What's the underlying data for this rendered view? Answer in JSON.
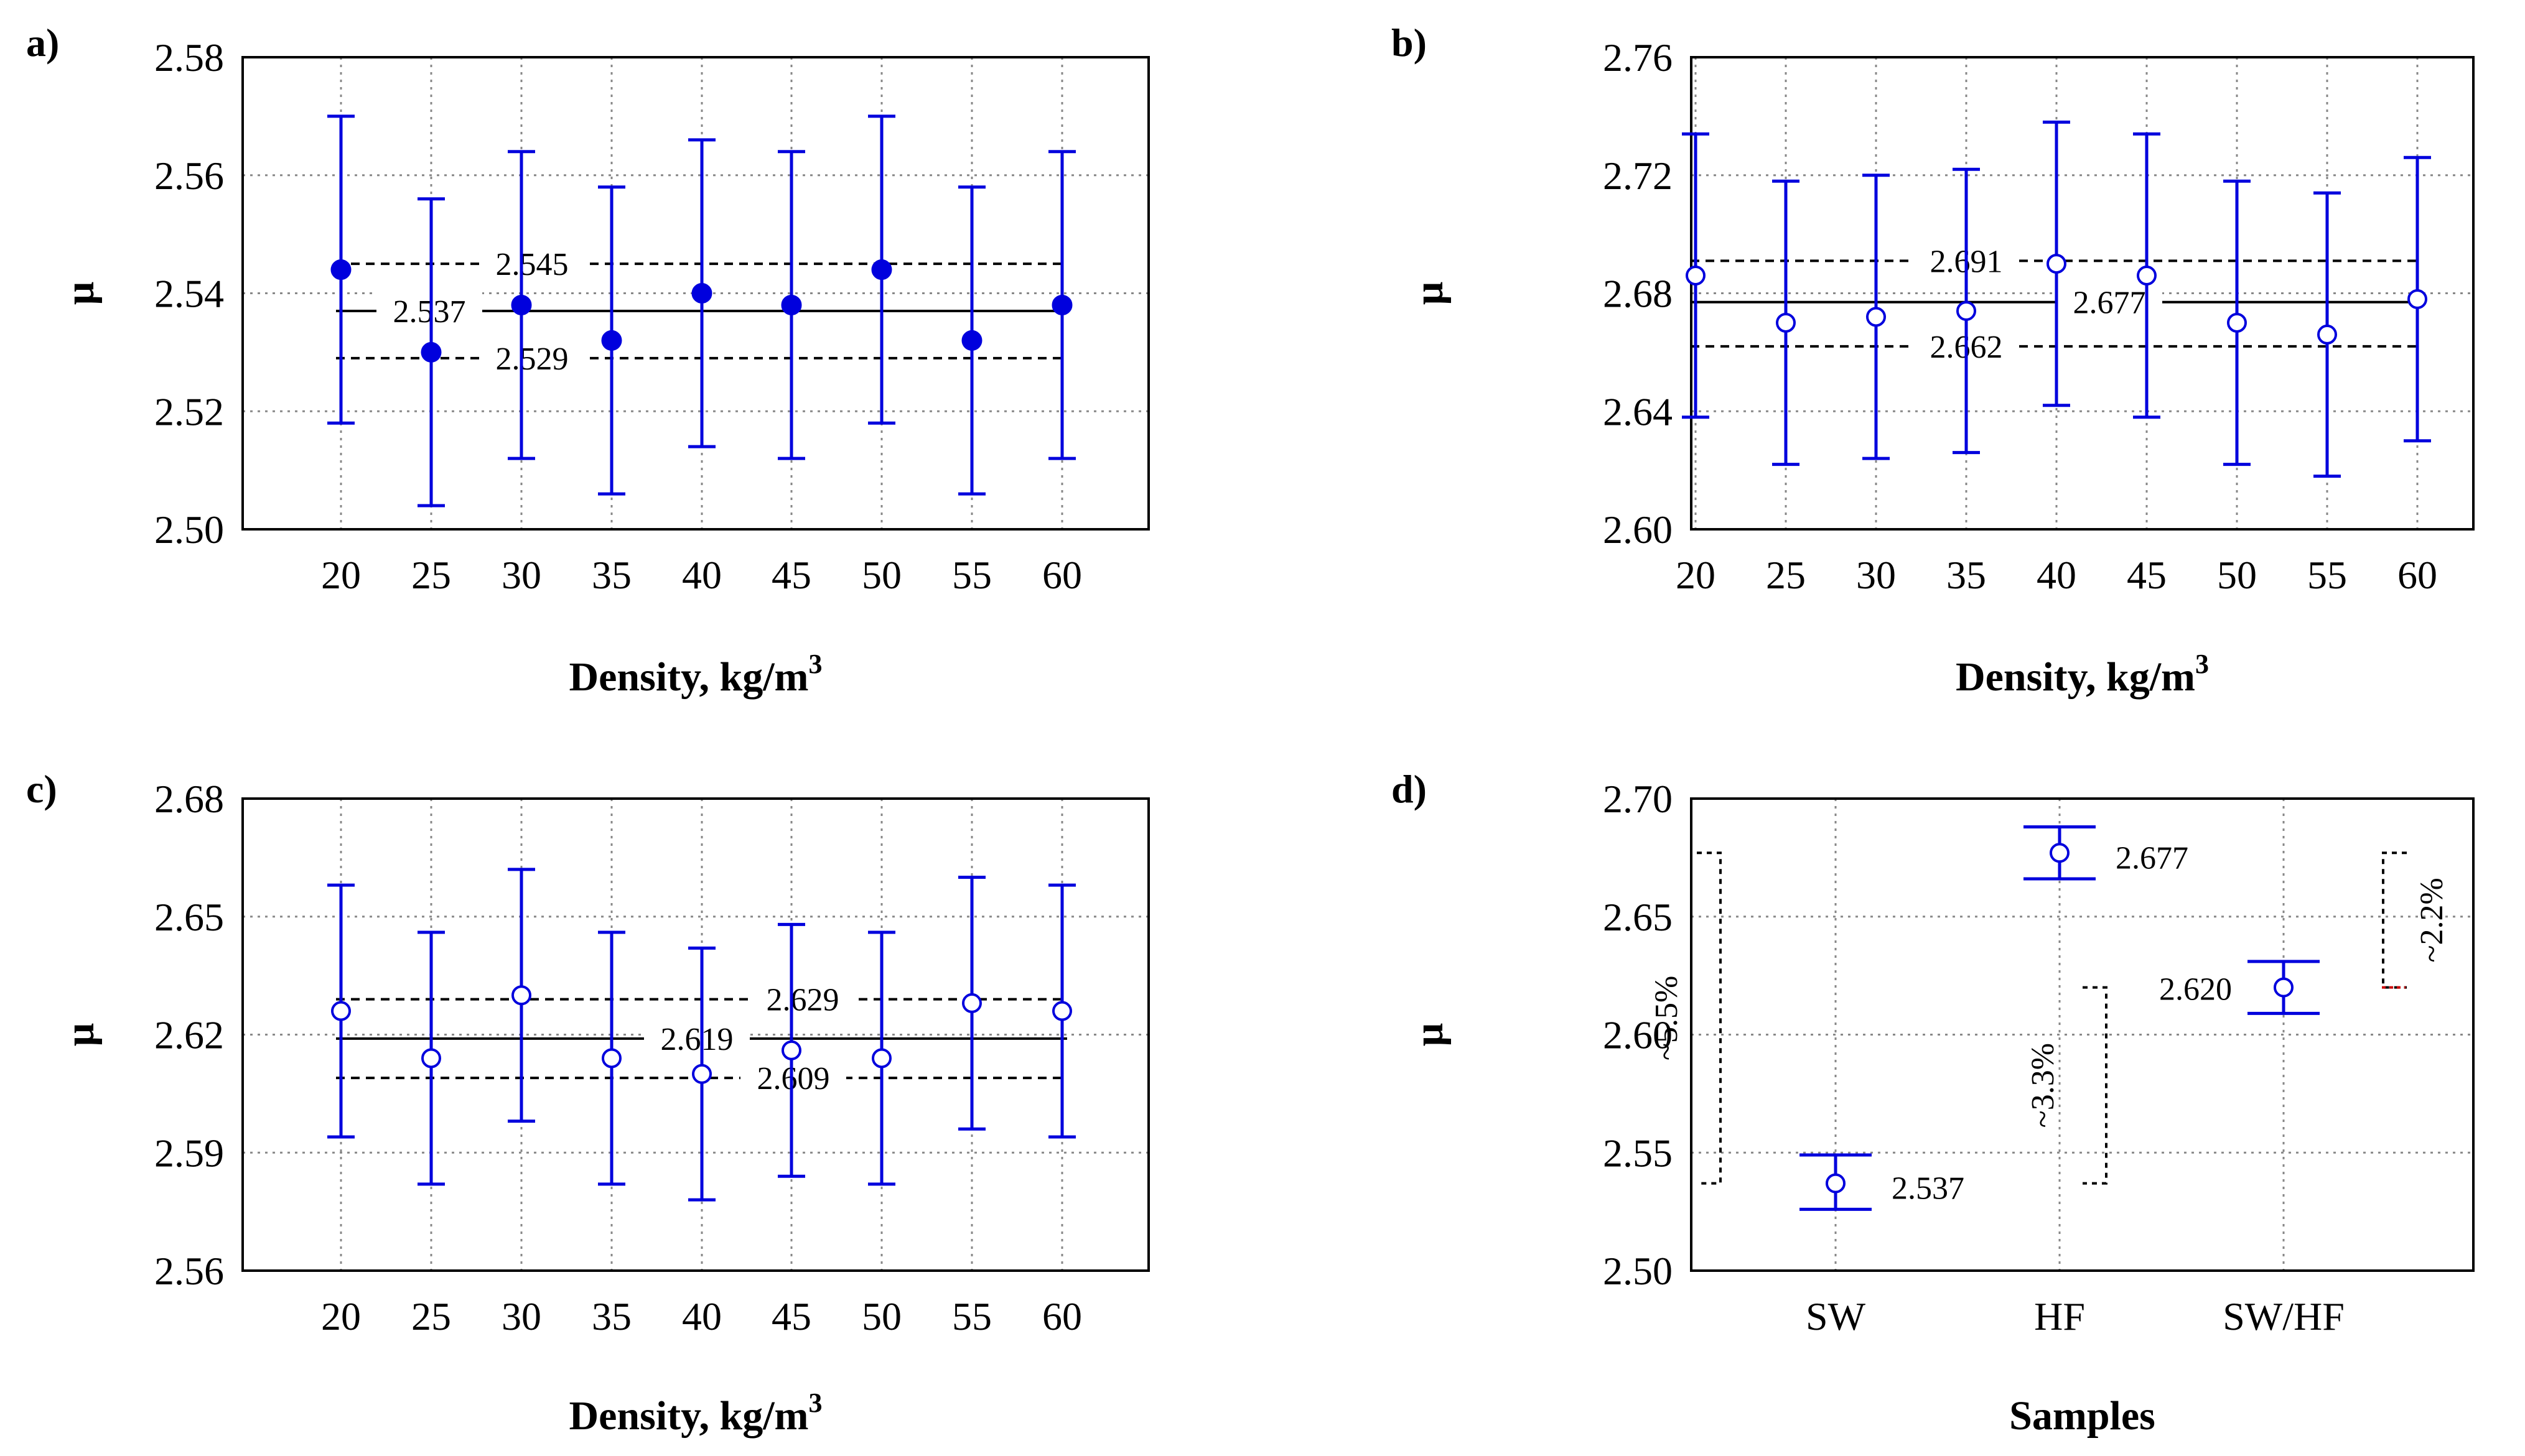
{
  "chart_data": [
    {
      "panel": "a)",
      "type": "errorbar",
      "xlabel": "Density, kg/m",
      "xlabel_sup": "3",
      "ylabel": "μ",
      "categories": [
        "20",
        "25",
        "30",
        "35",
        "40",
        "45",
        "50",
        "55",
        "60"
      ],
      "yticks": [
        "2.50",
        "2.52",
        "2.54",
        "2.56",
        "2.58"
      ],
      "ylim": [
        2.5,
        2.58
      ],
      "marker": "filled",
      "points": [
        {
          "x": "20",
          "mean": 2.544,
          "low": 2.518,
          "high": 2.57
        },
        {
          "x": "25",
          "mean": 2.53,
          "low": 2.504,
          "high": 2.556
        },
        {
          "x": "30",
          "mean": 2.538,
          "low": 2.512,
          "high": 2.564
        },
        {
          "x": "35",
          "mean": 2.532,
          "low": 2.506,
          "high": 2.558
        },
        {
          "x": "40",
          "mean": 2.54,
          "low": 2.514,
          "high": 2.566
        },
        {
          "x": "45",
          "mean": 2.538,
          "low": 2.512,
          "high": 2.564
        },
        {
          "x": "50",
          "mean": 2.544,
          "low": 2.518,
          "high": 2.57
        },
        {
          "x": "55",
          "mean": 2.532,
          "low": 2.506,
          "high": 2.558
        },
        {
          "x": "60",
          "mean": 2.538,
          "low": 2.512,
          "high": 2.564
        }
      ],
      "mean_line": {
        "value": 2.537,
        "label": "2.537"
      },
      "upper_line": {
        "value": 2.545,
        "label": "2.545"
      },
      "lower_line": {
        "value": 2.529,
        "label": "2.529"
      }
    },
    {
      "panel": "b)",
      "type": "errorbar",
      "xlabel": "Density, kg/m",
      "xlabel_sup": "3",
      "ylabel": "μ",
      "categories": [
        "20",
        "25",
        "30",
        "35",
        "40",
        "45",
        "50",
        "55",
        "60"
      ],
      "yticks": [
        "2.60",
        "2.64",
        "2.68",
        "2.72",
        "2.76"
      ],
      "ylim": [
        2.6,
        2.76
      ],
      "marker": "open",
      "points": [
        {
          "x": "20",
          "mean": 2.686,
          "low": 2.638,
          "high": 2.734
        },
        {
          "x": "25",
          "mean": 2.67,
          "low": 2.622,
          "high": 2.718
        },
        {
          "x": "30",
          "mean": 2.672,
          "low": 2.624,
          "high": 2.72
        },
        {
          "x": "35",
          "mean": 2.674,
          "low": 2.626,
          "high": 2.722
        },
        {
          "x": "40",
          "mean": 2.69,
          "low": 2.642,
          "high": 2.738
        },
        {
          "x": "45",
          "mean": 2.686,
          "low": 2.638,
          "high": 2.734
        },
        {
          "x": "50",
          "mean": 2.67,
          "low": 2.622,
          "high": 2.718
        },
        {
          "x": "55",
          "mean": 2.666,
          "low": 2.618,
          "high": 2.714
        },
        {
          "x": "60",
          "mean": 2.678,
          "low": 2.63,
          "high": 2.726
        }
      ],
      "mean_line": {
        "value": 2.677,
        "label": "2.677"
      },
      "upper_line": {
        "value": 2.691,
        "label": "2.691"
      },
      "lower_line": {
        "value": 2.662,
        "label": "2.662"
      }
    },
    {
      "panel": "c)",
      "type": "errorbar",
      "xlabel": "Density, kg/m",
      "xlabel_sup": "3",
      "ylabel": "μ",
      "categories": [
        "20",
        "25",
        "30",
        "35",
        "40",
        "45",
        "50",
        "55",
        "60"
      ],
      "yticks": [
        "2.56",
        "2.59",
        "2.62",
        "2.65",
        "2.68"
      ],
      "ylim": [
        2.56,
        2.68
      ],
      "marker": "open",
      "points": [
        {
          "x": "20",
          "mean": 2.626,
          "low": 2.594,
          "high": 2.658
        },
        {
          "x": "25",
          "mean": 2.614,
          "low": 2.582,
          "high": 2.646
        },
        {
          "x": "30",
          "mean": 2.63,
          "low": 2.598,
          "high": 2.662
        },
        {
          "x": "35",
          "mean": 2.614,
          "low": 2.582,
          "high": 2.646
        },
        {
          "x": "40",
          "mean": 2.61,
          "low": 2.578,
          "high": 2.642
        },
        {
          "x": "45",
          "mean": 2.616,
          "low": 2.584,
          "high": 2.648
        },
        {
          "x": "50",
          "mean": 2.614,
          "low": 2.582,
          "high": 2.646
        },
        {
          "x": "55",
          "mean": 2.628,
          "low": 2.596,
          "high": 2.66
        },
        {
          "x": "60",
          "mean": 2.626,
          "low": 2.594,
          "high": 2.658
        }
      ],
      "mean_line": {
        "value": 2.619,
        "label": "2.619"
      },
      "upper_line": {
        "value": 2.629,
        "label": "2.629"
      },
      "lower_line": {
        "value": 2.609,
        "label": "2.609"
      }
    },
    {
      "panel": "d)",
      "type": "errorbar",
      "xlabel": "Samples",
      "ylabel": "μ",
      "categories": [
        "SW",
        "HF",
        "SW/HF"
      ],
      "yticks": [
        "2.50",
        "2.55",
        "2.60",
        "2.65",
        "2.70"
      ],
      "ylim": [
        2.5,
        2.7
      ],
      "marker": "open",
      "points": [
        {
          "x": "SW",
          "mean": 2.537,
          "low": 2.526,
          "high": 2.549,
          "label": "2.537"
        },
        {
          "x": "HF",
          "mean": 2.677,
          "low": 2.666,
          "high": 2.688,
          "label": "2.677"
        },
        {
          "x": "SW/HF",
          "mean": 2.62,
          "low": 2.609,
          "high": 2.631,
          "label": "2.620"
        }
      ],
      "brackets": [
        {
          "label": "~5.5%",
          "from": 2.537,
          "to": 2.677
        },
        {
          "label": "~3.3%",
          "from": 2.537,
          "to": 2.62
        },
        {
          "label": "~2.2%",
          "from": 2.62,
          "to": 2.677
        }
      ]
    }
  ],
  "colors": {
    "series": "#0000dd",
    "lines": "#000000",
    "grid": "#888888",
    "accent_red": "#cc0000"
  }
}
